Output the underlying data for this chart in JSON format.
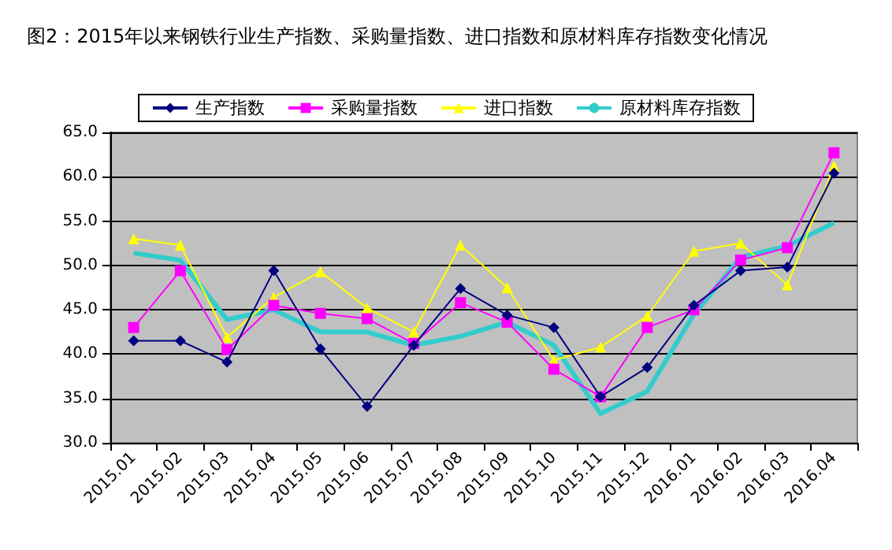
{
  "chart_data": {
    "type": "line",
    "title": "图2：2015年以来钢铁行业生产指数、采购量指数、进口指数和原材料库存指数变化情况",
    "categories": [
      "2015.01",
      "2015.02",
      "2015.03",
      "2015.04",
      "2015.05",
      "2015.06",
      "2015.07",
      "2015.08",
      "2015.09",
      "2015.10",
      "2015.11",
      "2015.12",
      "2016.01",
      "2016.02",
      "2016.03",
      "2016.04"
    ],
    "series": [
      {
        "name": "生产指数",
        "color": "#000080",
        "marker": "diamond",
        "values": [
          41.5,
          41.5,
          39.1,
          49.4,
          40.6,
          34.1,
          41.0,
          47.4,
          44.4,
          43.0,
          35.2,
          38.5,
          45.5,
          49.4,
          49.8,
          60.4
        ]
      },
      {
        "name": "采购量指数",
        "color": "#ff00ff",
        "marker": "square",
        "values": [
          43.0,
          49.4,
          40.5,
          45.5,
          44.6,
          44.0,
          41.2,
          45.8,
          43.6,
          38.3,
          35.2,
          43.0,
          45.0,
          50.6,
          52.0,
          62.7
        ]
      },
      {
        "name": "进口指数",
        "color": "#ffff00",
        "marker": "triangle",
        "values": [
          53.0,
          52.3,
          41.9,
          46.4,
          49.3,
          45.2,
          42.5,
          52.3,
          47.5,
          39.3,
          40.8,
          44.3,
          51.6,
          52.5,
          47.8,
          61.2
        ]
      },
      {
        "name": "原材料库存指数",
        "color": "#33cccc",
        "marker": "none",
        "values": [
          51.4,
          50.6,
          43.9,
          45.0,
          42.5,
          42.5,
          41.0,
          42.0,
          43.6,
          41.0,
          33.3,
          35.8,
          44.5,
          50.9,
          52.2,
          54.8
        ]
      }
    ],
    "ylim": [
      30,
      65
    ],
    "yticks": [
      {
        "value": 30,
        "label": "30.0"
      },
      {
        "value": 35,
        "label": "35.0"
      },
      {
        "value": 40,
        "label": "40.0"
      },
      {
        "value": 45,
        "label": "45.0"
      },
      {
        "value": 50,
        "label": "50.0"
      },
      {
        "value": 55,
        "label": "55.0"
      },
      {
        "value": 60,
        "label": "60.0"
      },
      {
        "value": 65,
        "label": "65.0"
      }
    ],
    "grid": "y",
    "legend": "top"
  }
}
